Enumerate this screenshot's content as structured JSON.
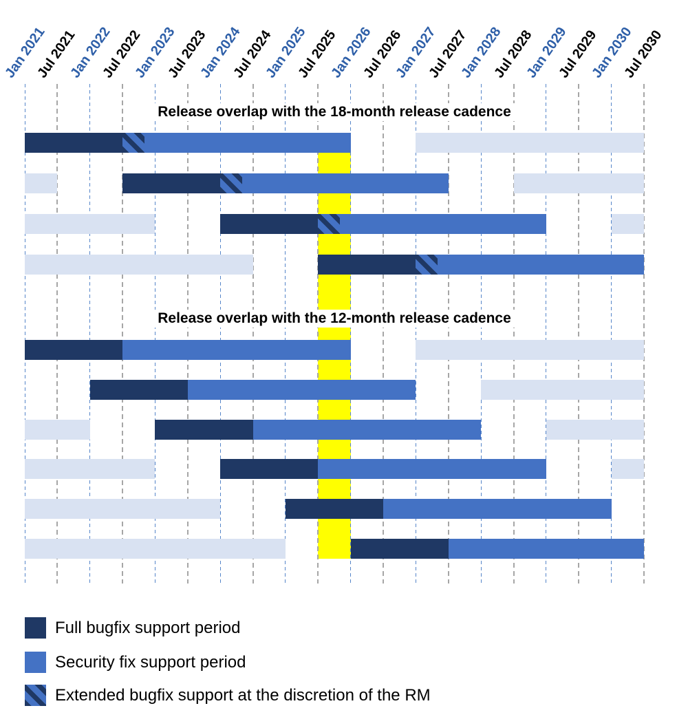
{
  "chart_data": {
    "type": "gantt",
    "title": "",
    "x_axis": {
      "start": "Jan 2021",
      "end": "Jul 2030",
      "tick_interval_months": 6,
      "ticks": [
        {
          "label": "Jan 2021",
          "style": "jan"
        },
        {
          "label": "Jul 2021",
          "style": "jul"
        },
        {
          "label": "Jan 2022",
          "style": "jan"
        },
        {
          "label": "Jul 2022",
          "style": "jul"
        },
        {
          "label": "Jan 2023",
          "style": "jan"
        },
        {
          "label": "Jul 2023",
          "style": "jul"
        },
        {
          "label": "Jan 2024",
          "style": "jan"
        },
        {
          "label": "Jul 2024",
          "style": "jul"
        },
        {
          "label": "Jan 2025",
          "style": "jan"
        },
        {
          "label": "Jul 2025",
          "style": "jul"
        },
        {
          "label": "Jan 2026",
          "style": "jan"
        },
        {
          "label": "Jul 2026",
          "style": "jul"
        },
        {
          "label": "Jan 2027",
          "style": "jan"
        },
        {
          "label": "Jul 2027",
          "style": "jul"
        },
        {
          "label": "Jan 2028",
          "style": "jan"
        },
        {
          "label": "Jul 2028",
          "style": "jul"
        },
        {
          "label": "Jan 2029",
          "style": "jan"
        },
        {
          "label": "Jul 2029",
          "style": "jul"
        },
        {
          "label": "Jan 2030",
          "style": "jan"
        },
        {
          "label": "Jul 2030",
          "style": "jul"
        }
      ]
    },
    "highlight_band": {
      "from": "Jul 2025",
      "to": "Jan 2026",
      "color": "#FFFF00"
    },
    "colors": {
      "full": "#1F3864",
      "security": "#4472C4",
      "extended_stripe": "#1F3864",
      "other_release": "#D9E2F2",
      "jan_label": "#2E5FA8",
      "jul_label": "#000000",
      "jan_grid": "#5585C9",
      "jul_grid": "#A6A6A6"
    },
    "sections": [
      {
        "title": "Release overlap with the 18-month release cadence",
        "rows": [
          {
            "segments": [
              {
                "type": "full",
                "from": "Jan 2021",
                "to": "Jul 2022"
              },
              {
                "type": "extended",
                "from": "Jul 2022",
                "to": "Nov 2022"
              },
              {
                "type": "security",
                "from": "Nov 2022",
                "to": "Jan 2026"
              },
              {
                "type": "other",
                "from": "Jan 2027",
                "to": "Jul 2030"
              }
            ]
          },
          {
            "segments": [
              {
                "type": "other",
                "from": "Jan 2021",
                "to": "Jul 2021"
              },
              {
                "type": "full",
                "from": "Jul 2022",
                "to": "Jan 2024"
              },
              {
                "type": "extended",
                "from": "Jan 2024",
                "to": "May 2024"
              },
              {
                "type": "security",
                "from": "May 2024",
                "to": "Jul 2027"
              },
              {
                "type": "other",
                "from": "Jul 2028",
                "to": "Jul 2030"
              }
            ]
          },
          {
            "segments": [
              {
                "type": "other",
                "from": "Jan 2021",
                "to": "Jan 2023"
              },
              {
                "type": "full",
                "from": "Jan 2024",
                "to": "Jul 2025"
              },
              {
                "type": "extended",
                "from": "Jul 2025",
                "to": "Nov 2025"
              },
              {
                "type": "security",
                "from": "Nov 2025",
                "to": "Jan 2029"
              },
              {
                "type": "other",
                "from": "Jan 2030",
                "to": "Jul 2030"
              }
            ]
          },
          {
            "segments": [
              {
                "type": "other",
                "from": "Jan 2021",
                "to": "Jul 2024"
              },
              {
                "type": "full",
                "from": "Jul 2025",
                "to": "Jan 2027"
              },
              {
                "type": "extended",
                "from": "Jan 2027",
                "to": "May 2027"
              },
              {
                "type": "security",
                "from": "May 2027",
                "to": "Jul 2030"
              }
            ]
          }
        ]
      },
      {
        "title": "Release overlap with the 12-month release cadence",
        "rows": [
          {
            "segments": [
              {
                "type": "full",
                "from": "Jan 2021",
                "to": "Jul 2022"
              },
              {
                "type": "security",
                "from": "Jul 2022",
                "to": "Jan 2026"
              },
              {
                "type": "other",
                "from": "Jan 2027",
                "to": "Jul 2030"
              }
            ]
          },
          {
            "segments": [
              {
                "type": "full",
                "from": "Jan 2022",
                "to": "Jul 2023"
              },
              {
                "type": "security",
                "from": "Jul 2023",
                "to": "Jan 2027"
              },
              {
                "type": "other",
                "from": "Jan 2028",
                "to": "Jul 2030"
              }
            ]
          },
          {
            "segments": [
              {
                "type": "other",
                "from": "Jan 2021",
                "to": "Jan 2022"
              },
              {
                "type": "full",
                "from": "Jan 2023",
                "to": "Jul 2024"
              },
              {
                "type": "security",
                "from": "Jul 2024",
                "to": "Jan 2028"
              },
              {
                "type": "other",
                "from": "Jan 2029",
                "to": "Jul 2030"
              }
            ]
          },
          {
            "segments": [
              {
                "type": "other",
                "from": "Jan 2021",
                "to": "Jan 2023"
              },
              {
                "type": "full",
                "from": "Jan 2024",
                "to": "Jul 2025"
              },
              {
                "type": "security",
                "from": "Jul 2025",
                "to": "Jan 2029"
              },
              {
                "type": "other",
                "from": "Jan 2030",
                "to": "Jul 2030"
              }
            ]
          },
          {
            "segments": [
              {
                "type": "other",
                "from": "Jan 2021",
                "to": "Jan 2024"
              },
              {
                "type": "full",
                "from": "Jan 2025",
                "to": "Jul 2026"
              },
              {
                "type": "security",
                "from": "Jul 2026",
                "to": "Jan 2030"
              }
            ]
          },
          {
            "segments": [
              {
                "type": "other",
                "from": "Jan 2021",
                "to": "Jan 2025"
              },
              {
                "type": "full",
                "from": "Jan 2026",
                "to": "Jul 2027"
              },
              {
                "type": "security",
                "from": "Jul 2027",
                "to": "Jul 2030"
              }
            ]
          }
        ]
      }
    ],
    "legend": [
      {
        "swatch": "full",
        "label": "Full bugfix support period"
      },
      {
        "swatch": "security",
        "label": "Security fix support period"
      },
      {
        "swatch": "extended",
        "label": "Extended bugfix support at the discretion of the RM"
      }
    ]
  }
}
